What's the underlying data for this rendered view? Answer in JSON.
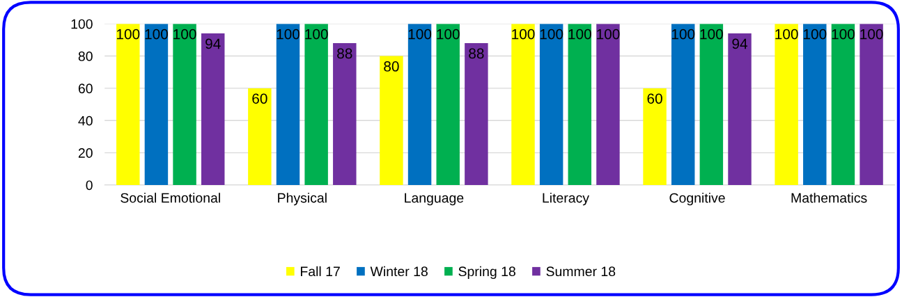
{
  "chart_data": {
    "type": "bar",
    "categories": [
      "Social Emotional",
      "Physical",
      "Language",
      "Literacy",
      "Cognitive",
      "Mathematics"
    ],
    "series": [
      {
        "name": "Fall 17",
        "color": "#ffff00",
        "values": [
          100,
          60,
          80,
          100,
          60,
          100
        ]
      },
      {
        "name": "Winter 18",
        "color": "#0070c0",
        "values": [
          100,
          100,
          100,
          100,
          100,
          100
        ]
      },
      {
        "name": "Spring 18",
        "color": "#00b050",
        "values": [
          100,
          100,
          100,
          100,
          100,
          100
        ]
      },
      {
        "name": "Summer 18",
        "color": "#7030a0",
        "values": [
          94,
          88,
          88,
          100,
          94,
          100
        ]
      }
    ],
    "ylim": [
      0,
      100
    ],
    "yticks": [
      0,
      20,
      40,
      60,
      80,
      100
    ],
    "grid": "y",
    "legend": "bottom",
    "data_labels": true
  }
}
